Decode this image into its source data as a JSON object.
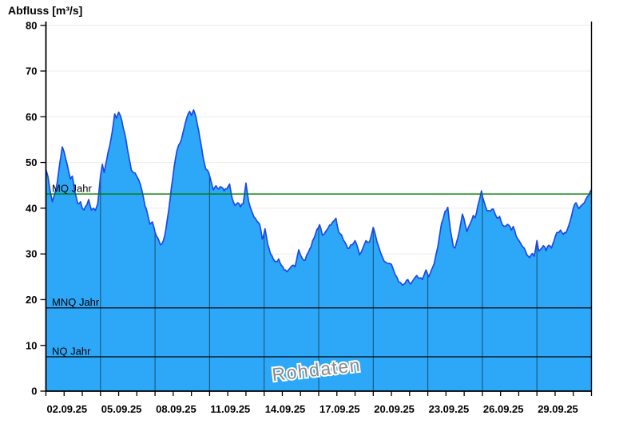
{
  "title": "Abfluss [m³/s]",
  "watermark": "Rohdaten",
  "colors": {
    "fill": "#2DA8F8",
    "edge": "#1B49E6",
    "mq_line": "#007F00",
    "ref_line": "#000000",
    "grid_h": "#EBEBEB",
    "grid_v": "rgba(0,0,0,0.5)",
    "axis": "#000000",
    "text": "#000000",
    "watermark": "#8A8A8A"
  },
  "chart_data": {
    "type": "area",
    "title": "Abfluss [m³/s]",
    "ylabel": "Abfluss [m³/s]",
    "ylim": [
      0,
      80
    ],
    "y_ticks": [
      0,
      10,
      20,
      30,
      40,
      50,
      60,
      70,
      80
    ],
    "x_tick_labels": [
      "02.09.25",
      "05.09.25",
      "08.09.25",
      "11.09.25",
      "14.09.25",
      "17.09.25",
      "20.09.25",
      "23.09.25",
      "26.09.25",
      "29.09.25"
    ],
    "x_tick_days": [
      0,
      3,
      6,
      9,
      12,
      15,
      18,
      21,
      24,
      27
    ],
    "x_range_days": [
      0,
      30
    ],
    "minor_x_tick_every_days": 1,
    "legend_position": "none",
    "grid": "horizontal light gray every 10; vertical dark gray at labeled dates",
    "reference_lines": [
      {
        "label": "MQ Jahr",
        "value": 43.1,
        "color": "#007F00"
      },
      {
        "label": "MNQ Jahr",
        "value": 18.2,
        "color": "#000000"
      },
      {
        "label": "NQ Jahr",
        "value": 7.5,
        "color": "#000000"
      }
    ],
    "series": [
      {
        "name": "Abfluss Rohdaten",
        "points": [
          [
            0.0,
            48.5
          ],
          [
            0.12,
            46.8
          ],
          [
            0.22,
            44.0
          ],
          [
            0.35,
            41.4
          ],
          [
            0.5,
            43.3
          ],
          [
            0.62,
            45.5
          ],
          [
            0.75,
            49.5
          ],
          [
            0.9,
            53.4
          ],
          [
            1.0,
            52.3
          ],
          [
            1.1,
            50.6
          ],
          [
            1.25,
            48.0
          ],
          [
            1.35,
            46.4
          ],
          [
            1.45,
            47.0
          ],
          [
            1.6,
            43.5
          ],
          [
            1.75,
            41.0
          ],
          [
            1.9,
            41.4
          ],
          [
            2.0,
            40.0
          ],
          [
            2.1,
            39.6
          ],
          [
            2.25,
            40.7
          ],
          [
            2.35,
            41.9
          ],
          [
            2.5,
            39.6
          ],
          [
            2.62,
            40.0
          ],
          [
            2.72,
            39.5
          ],
          [
            2.85,
            41.0
          ],
          [
            3.0,
            47.0
          ],
          [
            3.1,
            49.6
          ],
          [
            3.2,
            47.8
          ],
          [
            3.35,
            50.8
          ],
          [
            3.5,
            53.5
          ],
          [
            3.65,
            56.8
          ],
          [
            3.78,
            60.6
          ],
          [
            3.88,
            59.7
          ],
          [
            4.0,
            61.0
          ],
          [
            4.1,
            60.2
          ],
          [
            4.25,
            57.5
          ],
          [
            4.4,
            55.0
          ],
          [
            4.55,
            51.5
          ],
          [
            4.7,
            48.3
          ],
          [
            4.9,
            47.7
          ],
          [
            5.1,
            46.2
          ],
          [
            5.3,
            43.5
          ],
          [
            5.45,
            40.5
          ],
          [
            5.6,
            38.5
          ],
          [
            5.72,
            36.5
          ],
          [
            5.85,
            37.0
          ],
          [
            6.0,
            34.8
          ],
          [
            6.15,
            33.5
          ],
          [
            6.3,
            32.0
          ],
          [
            6.45,
            32.8
          ],
          [
            6.6,
            35.5
          ],
          [
            6.75,
            39.5
          ],
          [
            6.9,
            44.5
          ],
          [
            7.05,
            49.0
          ],
          [
            7.2,
            52.5
          ],
          [
            7.3,
            53.8
          ],
          [
            7.45,
            55.0
          ],
          [
            7.6,
            57.5
          ],
          [
            7.75,
            59.8
          ],
          [
            7.9,
            61.2
          ],
          [
            8.0,
            60.3
          ],
          [
            8.12,
            61.5
          ],
          [
            8.25,
            60.0
          ],
          [
            8.4,
            57.0
          ],
          [
            8.55,
            53.5
          ],
          [
            8.7,
            50.0
          ],
          [
            8.8,
            48.5
          ],
          [
            8.95,
            47.8
          ],
          [
            9.1,
            45.6
          ],
          [
            9.2,
            44.0
          ],
          [
            9.35,
            44.9
          ],
          [
            9.5,
            44.2
          ],
          [
            9.65,
            44.6
          ],
          [
            9.8,
            43.8
          ],
          [
            9.95,
            44.2
          ],
          [
            10.1,
            45.3
          ],
          [
            10.25,
            42.0
          ],
          [
            10.4,
            40.6
          ],
          [
            10.55,
            41.2
          ],
          [
            10.7,
            40.3
          ],
          [
            10.85,
            41.0
          ],
          [
            11.0,
            45.5
          ],
          [
            11.15,
            41.5
          ],
          [
            11.3,
            39.5
          ],
          [
            11.45,
            38.0
          ],
          [
            11.6,
            37.2
          ],
          [
            11.75,
            36.5
          ],
          [
            11.9,
            33.2
          ],
          [
            12.05,
            35.5
          ],
          [
            12.2,
            32.0
          ],
          [
            12.35,
            30.0
          ],
          [
            12.5,
            28.9
          ],
          [
            12.65,
            28.3
          ],
          [
            12.8,
            28.9
          ],
          [
            12.95,
            27.5
          ],
          [
            13.1,
            26.5
          ],
          [
            13.25,
            26.1
          ],
          [
            13.4,
            26.8
          ],
          [
            13.55,
            27.5
          ],
          [
            13.7,
            27.2
          ],
          [
            13.9,
            30.9
          ],
          [
            14.1,
            29.0
          ],
          [
            14.25,
            28.6
          ],
          [
            14.5,
            31.0
          ],
          [
            14.75,
            33.5
          ],
          [
            14.9,
            35.3
          ],
          [
            15.05,
            36.4
          ],
          [
            15.2,
            34.1
          ],
          [
            15.4,
            35.0
          ],
          [
            15.6,
            36.3
          ],
          [
            15.75,
            36.9
          ],
          [
            15.95,
            37.8
          ],
          [
            16.1,
            34.8
          ],
          [
            16.25,
            34.2
          ],
          [
            16.45,
            32.5
          ],
          [
            16.6,
            31.2
          ],
          [
            16.85,
            32.0
          ],
          [
            17.0,
            32.9
          ],
          [
            17.25,
            29.8
          ],
          [
            17.45,
            31.5
          ],
          [
            17.6,
            32.9
          ],
          [
            17.8,
            32.6
          ],
          [
            18.0,
            35.8
          ],
          [
            18.2,
            32.7
          ],
          [
            18.4,
            30.3
          ],
          [
            18.6,
            28.4
          ],
          [
            18.8,
            27.9
          ],
          [
            19.0,
            27.7
          ],
          [
            19.2,
            25.5
          ],
          [
            19.4,
            23.9
          ],
          [
            19.6,
            23.2
          ],
          [
            19.75,
            23.6
          ],
          [
            19.9,
            24.4
          ],
          [
            20.05,
            23.4
          ],
          [
            20.2,
            24.3
          ],
          [
            20.4,
            25.3
          ],
          [
            20.55,
            24.7
          ],
          [
            20.7,
            24.4
          ],
          [
            20.9,
            26.5
          ],
          [
            21.05,
            25.0
          ],
          [
            21.2,
            26.5
          ],
          [
            21.35,
            27.9
          ],
          [
            21.55,
            31.5
          ],
          [
            21.75,
            36.6
          ],
          [
            21.95,
            39.3
          ],
          [
            22.1,
            40.2
          ],
          [
            22.25,
            35.0
          ],
          [
            22.4,
            31.6
          ],
          [
            22.5,
            31.3
          ],
          [
            22.65,
            33.5
          ],
          [
            22.9,
            38.7
          ],
          [
            23.05,
            36.5
          ],
          [
            23.15,
            34.9
          ],
          [
            23.35,
            36.8
          ],
          [
            23.5,
            38.4
          ],
          [
            23.6,
            37.9
          ],
          [
            23.75,
            40.5
          ],
          [
            23.95,
            43.8
          ],
          [
            24.1,
            41.3
          ],
          [
            24.25,
            39.5
          ],
          [
            24.45,
            39.4
          ],
          [
            24.6,
            39.8
          ],
          [
            24.8,
            37.9
          ],
          [
            24.95,
            38.2
          ],
          [
            25.1,
            36.4
          ],
          [
            25.3,
            36.1
          ],
          [
            25.45,
            36.3
          ],
          [
            25.6,
            35.2
          ],
          [
            25.7,
            36.0
          ],
          [
            25.85,
            34.0
          ],
          [
            26.0,
            33.0
          ],
          [
            26.15,
            32.0
          ],
          [
            26.3,
            31.3
          ],
          [
            26.45,
            29.8
          ],
          [
            26.6,
            29.2
          ],
          [
            26.75,
            30.1
          ],
          [
            26.85,
            29.5
          ],
          [
            27.0,
            32.9
          ],
          [
            27.1,
            30.6
          ],
          [
            27.25,
            31.2
          ],
          [
            27.35,
            31.8
          ],
          [
            27.5,
            30.7
          ],
          [
            27.65,
            31.9
          ],
          [
            27.8,
            31.3
          ],
          [
            27.95,
            33.0
          ],
          [
            28.1,
            34.7
          ],
          [
            28.3,
            35.2
          ],
          [
            28.45,
            34.3
          ],
          [
            28.6,
            34.6
          ],
          [
            28.8,
            36.8
          ],
          [
            29.0,
            40.0
          ],
          [
            29.15,
            41.2
          ],
          [
            29.3,
            39.9
          ],
          [
            29.5,
            40.8
          ],
          [
            29.7,
            42.0
          ],
          [
            29.85,
            42.8
          ],
          [
            30.0,
            44.0
          ]
        ]
      }
    ]
  }
}
